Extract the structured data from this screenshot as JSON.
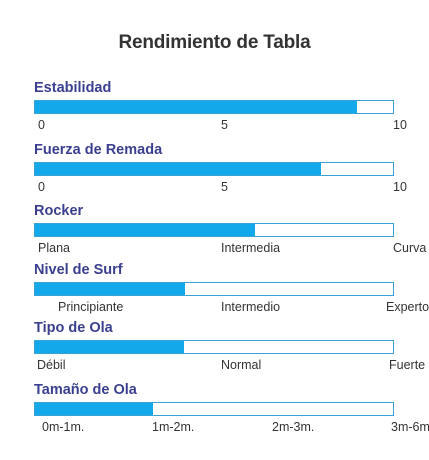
{
  "title": "Rendimiento de Tabla",
  "colors": {
    "bar_fill": "#12a8ea",
    "bar_border": "#3aa0d5",
    "label": "#3a3f8f"
  },
  "metrics": [
    {
      "label": "Estabilidad",
      "fill_fraction": 0.9,
      "ticks": [
        "0",
        "5",
        "10"
      ]
    },
    {
      "label": "Fuerza de Remada",
      "fill_fraction": 0.8,
      "ticks": [
        "0",
        "5",
        "10"
      ]
    },
    {
      "label": "Rocker",
      "fill_fraction": 0.615,
      "ticks": [
        "Plana",
        "Intermedia",
        "Curva"
      ]
    },
    {
      "label": "Nivel de Surf",
      "fill_fraction": 0.42,
      "ticks": [
        "Principiante",
        "Intermedio",
        "Experto"
      ]
    },
    {
      "label": "Tipo de Ola",
      "fill_fraction": 0.415,
      "ticks": [
        "Débil",
        "Normal",
        "Fuerte"
      ]
    },
    {
      "label": "Tamaño de Ola",
      "fill_fraction": 0.33,
      "ticks": [
        "0m-1m.",
        "1m-2m.",
        "2m-3m.",
        "3m-6m."
      ]
    }
  ]
}
